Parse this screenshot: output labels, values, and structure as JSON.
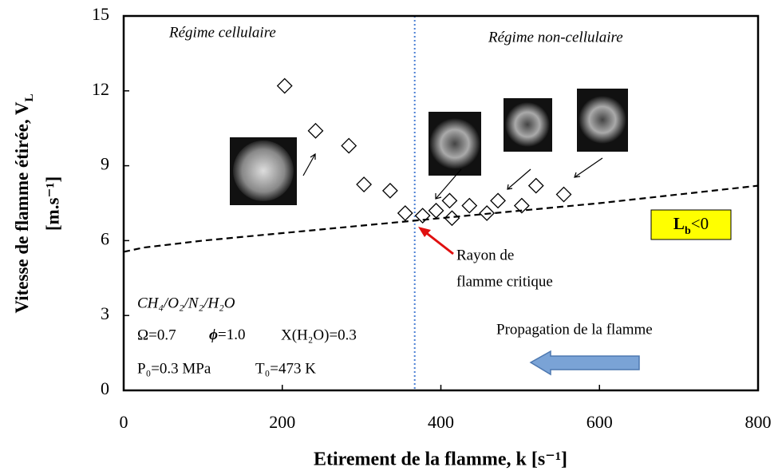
{
  "chart_data": {
    "type": "scatter",
    "xlabel": "Etirement de la flamme, k [s⁻¹]",
    "ylabel": {
      "text": "Vitesse de flamme étirée, V",
      "sub": "L",
      "unit": "[m.s⁻¹]"
    },
    "xlim": [
      0,
      800
    ],
    "ylim": [
      0,
      15
    ],
    "xticks": [
      0,
      200,
      400,
      600,
      800
    ],
    "yticks": [
      0,
      3,
      6,
      9,
      12,
      15
    ],
    "series": [
      {
        "type": "scatter",
        "color": "#000000",
        "x": [
          203,
          242,
          284,
          303,
          336,
          355,
          377,
          394,
          411,
          414,
          436,
          458,
          472,
          502,
          520,
          555
        ],
        "y": [
          12.2,
          10.4,
          9.8,
          8.25,
          8.0,
          7.1,
          7.0,
          7.2,
          7.6,
          6.9,
          7.4,
          7.1,
          7.6,
          7.4,
          8.2,
          7.85
        ]
      },
      {
        "type": "line",
        "color": "#000000",
        "dash": true,
        "x": [
          0,
          25,
          100,
          200,
          300,
          400,
          500,
          600,
          700,
          800
        ],
        "y": [
          5.55,
          5.72,
          6.0,
          6.3,
          6.6,
          6.9,
          7.2,
          7.5,
          7.85,
          8.2
        ]
      }
    ],
    "reference_line": {
      "x": 367,
      "color": "#4a7fd4"
    },
    "annotations": {
      "regime_left": "Régime cellulaire",
      "regime_right": "Régime non-cellulaire",
      "critical": [
        "Rayon de",
        "flamme critique"
      ],
      "lb": {
        "text": "L",
        "sub": "b",
        "rest": "<0"
      },
      "mixture": "CH₄/O₂/N₂/H₂O",
      "omega": "Ω=0.7",
      "phi": "ϕ",
      "phi_value": "=1.0",
      "water": "X(H₂O)=0.3",
      "pressure": "P₀=0.3 MPa",
      "temperature": "T₀=473 K",
      "propagation": "Propagation de la flamme"
    }
  }
}
